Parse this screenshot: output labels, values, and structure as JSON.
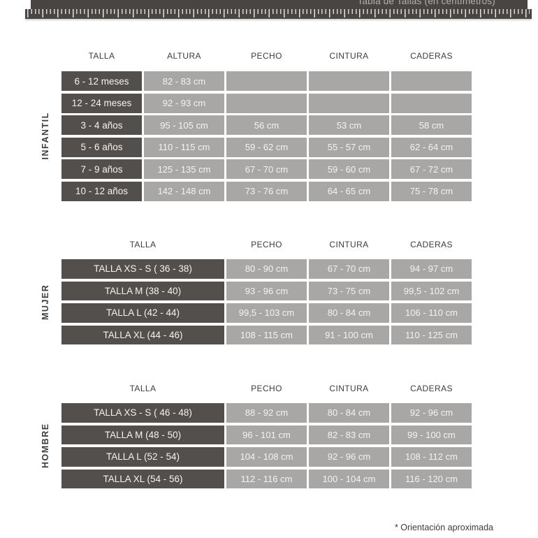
{
  "header": {
    "title": "Tabla de Tallas (en centímetros)"
  },
  "tables": [
    {
      "id": "infantil",
      "side_label": "INFANTIL",
      "columns": [
        "TALLA",
        "ALTURA",
        "PECHO",
        "CINTURA",
        "CADERAS"
      ],
      "rows": [
        {
          "talla": "6 - 12 meses",
          "values": [
            "82 - 83 cm",
            "",
            "",
            ""
          ]
        },
        {
          "talla": "12 - 24 meses",
          "values": [
            "92 - 93 cm",
            "",
            "",
            ""
          ]
        },
        {
          "talla": "3 - 4 años",
          "values": [
            "95 - 105 cm",
            "56 cm",
            "53 cm",
            "58 cm"
          ]
        },
        {
          "talla": "5 - 6 años",
          "values": [
            "110 - 115 cm",
            "59 - 62 cm",
            "55 - 57 cm",
            "62 - 64 cm"
          ]
        },
        {
          "talla": "7 - 9 años",
          "values": [
            "125 - 135 cm",
            "67 - 70 cm",
            "59 - 60 cm",
            "67 - 72 cm"
          ]
        },
        {
          "talla": "10 - 12 años",
          "values": [
            "142 - 148 cm",
            "73 - 76 cm",
            "64 - 65 cm",
            "75 - 78 cm"
          ]
        }
      ]
    },
    {
      "id": "mujer",
      "side_label": "MUJER",
      "columns": [
        "TALLA",
        "PECHO",
        "CINTURA",
        "CADERAS"
      ],
      "rows": [
        {
          "talla": "TALLA XS - S ( 36 - 38)",
          "values": [
            "80 - 90 cm",
            "67 - 70 cm",
            "94 - 97 cm"
          ]
        },
        {
          "talla": "TALLA M (38 - 40)",
          "values": [
            "93 - 96 cm",
            "73 - 75 cm",
            "99,5 - 102 cm"
          ]
        },
        {
          "talla": "TALLA L (42 - 44)",
          "values": [
            "99,5 - 103 cm",
            "80 - 84 cm",
            "106 - 110 cm"
          ]
        },
        {
          "talla": "TALLA XL (44 - 46)",
          "values": [
            "108 - 115 cm",
            "91 - 100 cm",
            "110 - 125 cm"
          ]
        }
      ]
    },
    {
      "id": "hombre",
      "side_label": "HOMBRE",
      "columns": [
        "TALLA",
        "PECHO",
        "CINTURA",
        "CADERAS"
      ],
      "rows": [
        {
          "talla": "TALLA XS - S ( 46 - 48)",
          "values": [
            "88 - 92 cm",
            "80 - 84 cm",
            "92 - 96 cm"
          ]
        },
        {
          "talla": "TALLA M (48 - 50)",
          "values": [
            "96 - 101 cm",
            "82 - 83 cm",
            "99 - 100 cm"
          ]
        },
        {
          "talla": "TALLA L (52 - 54)",
          "values": [
            "104 - 108 cm",
            "92 - 96 cm",
            "108 - 112 cm"
          ]
        },
        {
          "talla": "TALLA XL (54 - 56)",
          "values": [
            "112 - 116 cm",
            "100 - 104 cm",
            "116 - 120 cm"
          ]
        }
      ]
    }
  ],
  "footnote": "* Orientación aproximada",
  "colors": {
    "tape": "#494543",
    "dark_cell": "#534f4d",
    "light_cell": "#a8a7a5",
    "cell_text": "#f4f3f1",
    "heading_text": "#3d3c3b"
  }
}
